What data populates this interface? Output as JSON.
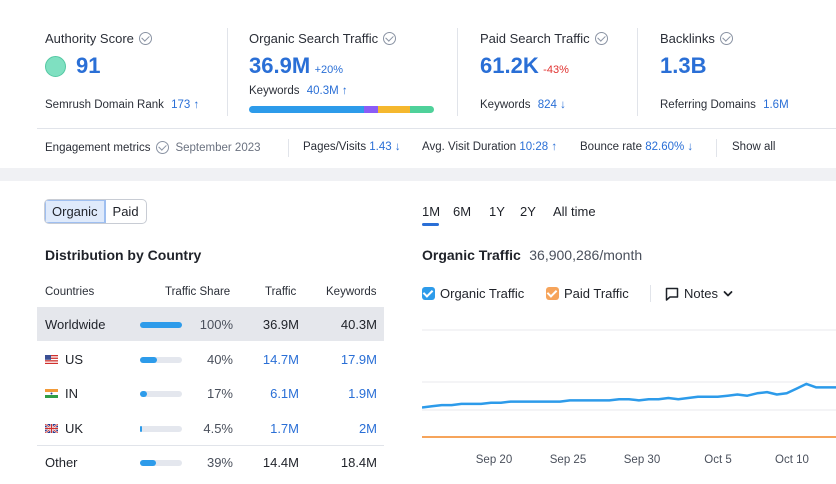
{
  "metrics": {
    "authority": {
      "title": "Authority Score",
      "value": "91",
      "rank_label": "Semrush Domain Rank",
      "rank_value": "173 ↑"
    },
    "organic": {
      "title": "Organic Search Traffic",
      "value": "36.9M",
      "delta": "+20%",
      "keywords_label": "Keywords",
      "keywords_value": "40.3M ↑"
    },
    "paid": {
      "title": "Paid Search Traffic",
      "value": "61.2K",
      "delta": "-43%",
      "keywords_label": "Keywords",
      "keywords_value": "824 ↓"
    },
    "backlinks": {
      "title": "Backlinks",
      "value": "1.3B",
      "ref_label": "Referring Domains",
      "ref_value": "1.6M"
    }
  },
  "keyword_bar_colors": [
    "#2d9bea",
    "#2d9bea",
    "#8b5cf6",
    "#f5b82e",
    "#4fd19a"
  ],
  "engagement": {
    "label": "Engagement metrics",
    "date": "September 2023",
    "pages_label": "Pages/Visits",
    "pages_value": "1.43 ↓",
    "duration_label": "Avg. Visit Duration",
    "duration_value": "10:28 ↑",
    "bounce_label": "Bounce rate",
    "bounce_value": "82.60% ↓",
    "show_all": "Show all"
  },
  "toggle": {
    "organic": "Organic",
    "paid": "Paid"
  },
  "distribution": {
    "title": "Distribution by Country",
    "headers": {
      "countries": "Countries",
      "share": "Traffic Share",
      "traffic": "Traffic",
      "keywords": "Keywords"
    },
    "rows": [
      {
        "country": "Worldwide",
        "share": "100%",
        "share_fraction": 1.0,
        "traffic": "36.9M",
        "keywords": "40.3M",
        "flag": ""
      },
      {
        "country": "US",
        "share": "40%",
        "share_fraction": 0.4,
        "traffic": "14.7M",
        "keywords": "17.9M",
        "flag": "us-flag"
      },
      {
        "country": "IN",
        "share": "17%",
        "share_fraction": 0.17,
        "traffic": "6.1M",
        "keywords": "1.9M",
        "flag": "in-flag"
      },
      {
        "country": "UK",
        "share": "4.5%",
        "share_fraction": 0.045,
        "traffic": "1.7M",
        "keywords": "2M",
        "flag": "uk-flag"
      },
      {
        "country": "Other",
        "share": "39%",
        "share_fraction": 0.39,
        "traffic": "14.4M",
        "keywords": "18.4M",
        "flag": ""
      }
    ]
  },
  "time_tabs": [
    "1M",
    "6M",
    "1Y",
    "2Y",
    "All time"
  ],
  "traffic": {
    "title": "Organic Traffic",
    "value": "36,900,286/month"
  },
  "legend": {
    "organic": "Organic Traffic",
    "paid": "Paid Traffic",
    "notes": "Notes"
  },
  "colors": {
    "organic": "#2d9bea",
    "paid": "#f6a45b",
    "accent": "#2a6fd6"
  },
  "chart_data": {
    "type": "line",
    "x_tick_labels": [
      "Sep 20",
      "Sep 25",
      "Sep 30",
      "Oct 5",
      "Oct 10"
    ],
    "series": [
      {
        "name": "Organic Traffic",
        "color": "#2d9bea",
        "relative_values": [
          0.25,
          0.26,
          0.27,
          0.27,
          0.28,
          0.28,
          0.28,
          0.29,
          0.29,
          0.3,
          0.3,
          0.3,
          0.3,
          0.3,
          0.3,
          0.31,
          0.31,
          0.31,
          0.31,
          0.31,
          0.32,
          0.32,
          0.31,
          0.32,
          0.32,
          0.33,
          0.32,
          0.33,
          0.34,
          0.34,
          0.34,
          0.35,
          0.36,
          0.35,
          0.37,
          0.38,
          0.36,
          0.37,
          0.41,
          0.45,
          0.42,
          0.42,
          0.42
        ]
      },
      {
        "name": "Paid Traffic",
        "color": "#f6a45b",
        "relative_values": [
          0.0,
          0.0,
          0.0,
          0.0,
          0.0,
          0.0,
          0.0,
          0.0,
          0.0,
          0.0,
          0.0,
          0.0,
          0.0,
          0.0,
          0.0,
          0.0,
          0.0,
          0.0,
          0.0,
          0.0,
          0.0,
          0.0,
          0.0,
          0.0,
          0.0,
          0.0,
          0.0,
          0.0,
          0.0,
          0.0,
          0.0,
          0.0,
          0.0,
          0.0,
          0.0,
          0.0,
          0.0,
          0.0,
          0.0,
          0.0,
          0.0,
          0.0,
          0.0
        ]
      }
    ],
    "gridlines": 4
  }
}
